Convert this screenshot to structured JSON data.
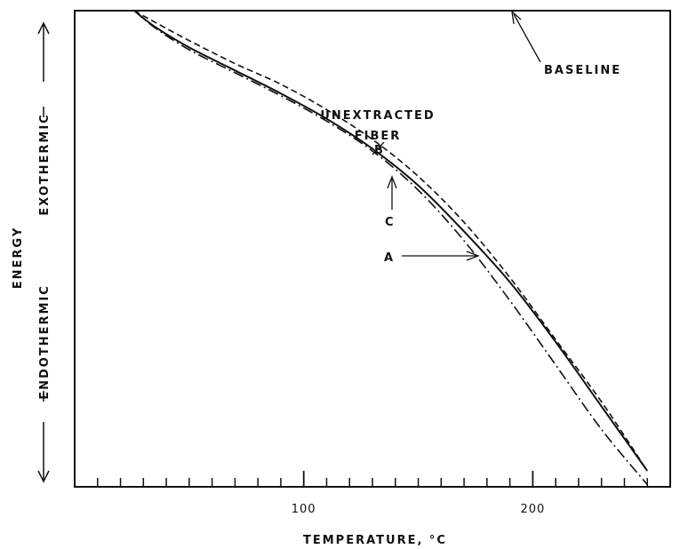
{
  "chart_data": {
    "type": "line",
    "xlabel": "TEMPERATURE, °C",
    "ylabel": "ENERGY",
    "ylabel_top": "EXOTHERMIC",
    "ylabel_bottom": "ENDOTHERMIC",
    "xlim": [
      0,
      260
    ],
    "ylim": [
      0,
      100
    ],
    "x_ticks_major": [
      100,
      200
    ],
    "x_tick_labels": [
      "100",
      "200"
    ],
    "x_ticks_minor": [
      10,
      20,
      30,
      40,
      50,
      60,
      70,
      80,
      90,
      110,
      120,
      130,
      140,
      150,
      160,
      170,
      180,
      190,
      210,
      220,
      230,
      240,
      250
    ],
    "grid": false,
    "annotations": [
      {
        "key": "unextracted",
        "text": "UNEXTRACTED",
        "text2": "FIBER"
      },
      {
        "key": "baseline",
        "text": "BASELINE"
      },
      {
        "key": "B",
        "text": "B"
      },
      {
        "key": "C",
        "text": "C"
      },
      {
        "key": "A",
        "text": "A"
      }
    ],
    "series": [
      {
        "style": "solid",
        "x": [
          26,
          35,
          50,
          70,
          90,
          110,
          130,
          150,
          170,
          190,
          210,
          230,
          250
        ],
        "y": [
          100,
          96.5,
          92,
          87,
          82,
          76.5,
          70,
          62,
          52,
          41,
          28,
          14,
          0
        ]
      },
      {
        "style": "dashed",
        "x": [
          26,
          35,
          50,
          70,
          90,
          110,
          130,
          150,
          170,
          190,
          210,
          230,
          250
        ],
        "y": [
          100,
          97.5,
          93.5,
          88.5,
          84,
          78.5,
          72,
          64,
          54,
          42,
          28.5,
          15,
          0
        ]
      },
      {
        "style": "dashdot",
        "x": [
          26,
          35,
          50,
          70,
          90,
          110,
          130,
          150,
          170,
          190,
          210,
          230,
          250
        ],
        "y": [
          100,
          96.3,
          91.5,
          86.5,
          81.5,
          76,
          69.5,
          61,
          50,
          37,
          23,
          9,
          -3
        ]
      }
    ]
  }
}
